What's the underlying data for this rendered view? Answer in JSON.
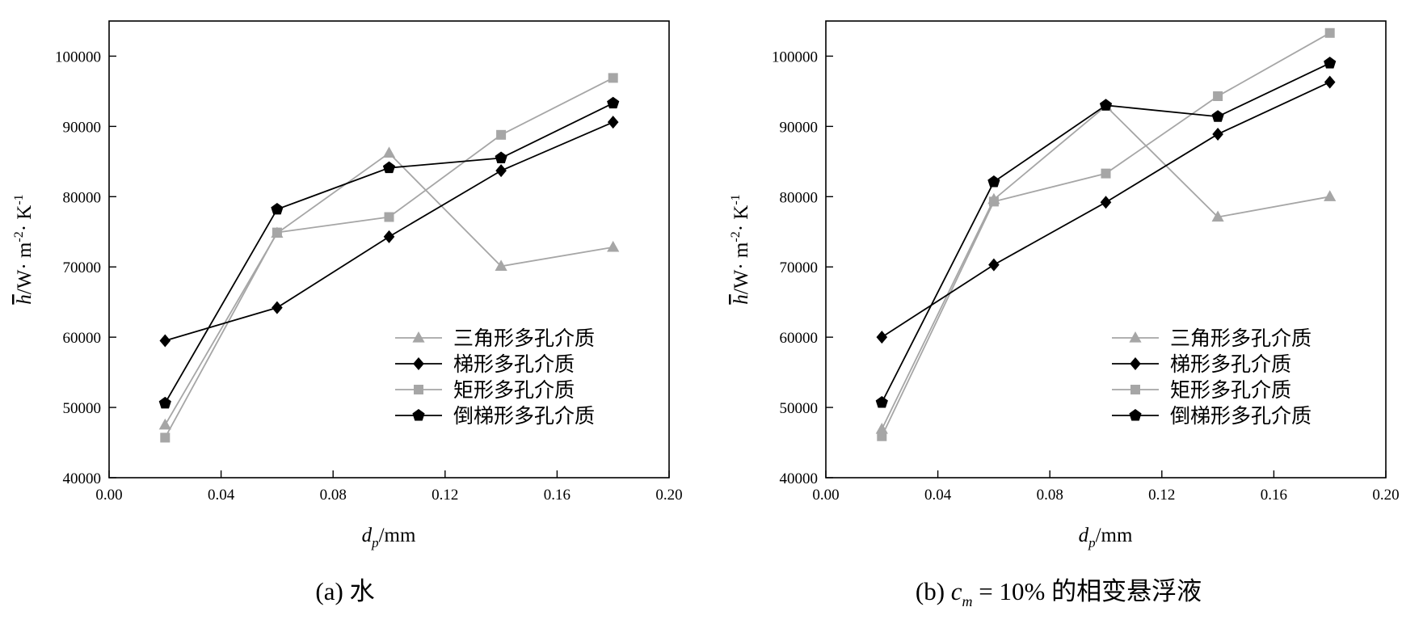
{
  "chart_data": [
    {
      "type": "line",
      "caption": "(a) 水",
      "xlabel": {
        "var": "d",
        "sub": "p",
        "unit": "/mm"
      },
      "ylabel": {
        "var": "h",
        "unit": "/W· m",
        "exp1": "-2",
        "mid": "· K",
        "exp2": "-1"
      },
      "xlim": [
        0.0,
        0.2
      ],
      "ylim": [
        40000,
        105000
      ],
      "xticks": [
        "0.00",
        "0.04",
        "0.08",
        "0.12",
        "0.16",
        "0.20"
      ],
      "yticks": [
        "40000",
        "50000",
        "60000",
        "70000",
        "80000",
        "90000",
        "100000"
      ],
      "legend_position": "lower-right",
      "x": [
        0.02,
        0.06,
        0.1,
        0.14,
        0.18
      ],
      "series": [
        {
          "name": "三角形多孔介质",
          "marker": "triangle",
          "color": "#a6a6a6",
          "values": [
            47500,
            74800,
            86200,
            70100,
            72800
          ]
        },
        {
          "name": "梯形多孔介质",
          "marker": "diamond",
          "color": "#000000",
          "values": [
            59500,
            64200,
            74300,
            83700,
            90600
          ]
        },
        {
          "name": "矩形多孔介质",
          "marker": "square",
          "color": "#a6a6a6",
          "values": [
            45700,
            74900,
            77100,
            88800,
            96900
          ]
        },
        {
          "name": "倒梯形多孔介质",
          "marker": "pentagon",
          "color": "#000000",
          "values": [
            50600,
            78200,
            84100,
            85500,
            93300
          ]
        }
      ]
    },
    {
      "type": "line",
      "caption": "(b) cm = 10% 的相变悬浮液",
      "caption_parts": {
        "prefix": "(b) ",
        "var": "c",
        "sub": "m",
        "suffix": " = 10% 的相变悬浮液"
      },
      "xlabel": {
        "var": "d",
        "sub": "p",
        "unit": "/mm"
      },
      "ylabel": {
        "var": "h",
        "unit": "/W· m",
        "exp1": "-2",
        "mid": "· K",
        "exp2": "-1"
      },
      "xlim": [
        0.0,
        0.2
      ],
      "ylim": [
        40000,
        105000
      ],
      "xticks": [
        "0.00",
        "0.04",
        "0.08",
        "0.12",
        "0.16",
        "0.20"
      ],
      "yticks": [
        "40000",
        "50000",
        "60000",
        "70000",
        "80000",
        "90000",
        "100000"
      ],
      "legend_position": "lower-right",
      "x": [
        0.02,
        0.06,
        0.1,
        0.14,
        0.18
      ],
      "series": [
        {
          "name": "三角形多孔介质",
          "marker": "triangle",
          "color": "#a6a6a6",
          "values": [
            46900,
            79600,
            92900,
            77100,
            80000
          ]
        },
        {
          "name": "梯形多孔介质",
          "marker": "diamond",
          "color": "#000000",
          "values": [
            60000,
            70300,
            79200,
            88900,
            96300
          ]
        },
        {
          "name": "矩形多孔介质",
          "marker": "square",
          "color": "#a6a6a6",
          "values": [
            45900,
            79300,
            83300,
            94300,
            103300
          ]
        },
        {
          "name": "倒梯形多孔介质",
          "marker": "pentagon",
          "color": "#000000",
          "values": [
            50700,
            82100,
            93000,
            91400,
            99000
          ]
        }
      ]
    }
  ]
}
